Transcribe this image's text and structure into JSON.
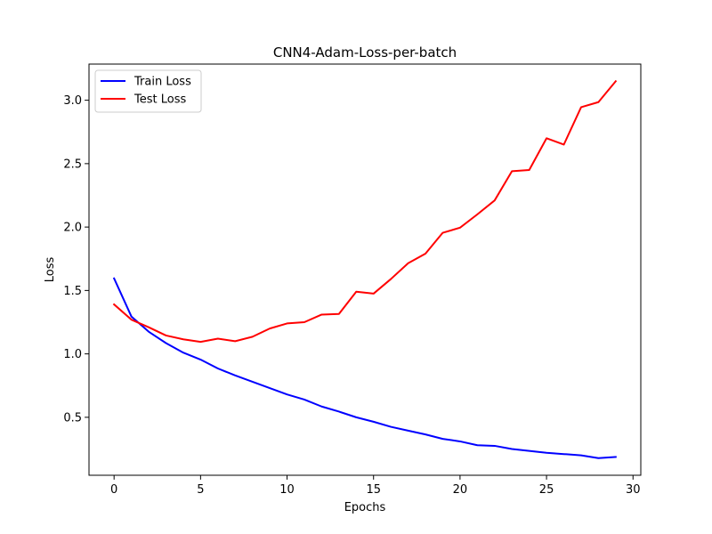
{
  "chart_data": {
    "type": "line",
    "title": "CNN4-Adam-Loss-per-batch",
    "xlabel": "Epochs",
    "ylabel": "Loss",
    "xlim": [
      -1.45,
      30.45
    ],
    "ylim": [
      0.043,
      3.285
    ],
    "xticks": [
      0,
      5,
      10,
      15,
      20,
      25,
      30
    ],
    "yticks": [
      0.5,
      1.0,
      1.5,
      2.0,
      2.5,
      3.0
    ],
    "xtick_labels": [
      "0",
      "5",
      "10",
      "15",
      "20",
      "25",
      "30"
    ],
    "ytick_labels": [
      "0.5",
      "1.0",
      "1.5",
      "2.0",
      "2.5",
      "3.0"
    ],
    "grid": false,
    "legend_position": "top-left",
    "x": [
      0,
      1,
      2,
      3,
      4,
      5,
      6,
      7,
      8,
      9,
      10,
      11,
      12,
      13,
      14,
      15,
      16,
      17,
      18,
      19,
      20,
      21,
      22,
      23,
      24,
      25,
      26,
      27,
      28,
      29
    ],
    "series": [
      {
        "name": "Train Loss",
        "color": "#0000ff",
        "values": [
          1.595,
          1.295,
          1.175,
          1.085,
          1.01,
          0.955,
          0.885,
          0.83,
          0.78,
          0.73,
          0.68,
          0.64,
          0.585,
          0.545,
          0.5,
          0.465,
          0.425,
          0.395,
          0.365,
          0.33,
          0.31,
          0.28,
          0.275,
          0.25,
          0.235,
          0.22,
          0.21,
          0.2,
          0.178,
          0.187
        ]
      },
      {
        "name": "Test Loss",
        "color": "#ff0000",
        "values": [
          1.39,
          1.27,
          1.21,
          1.145,
          1.115,
          1.095,
          1.12,
          1.1,
          1.135,
          1.2,
          1.24,
          1.25,
          1.31,
          1.315,
          1.49,
          1.475,
          1.59,
          1.715,
          1.79,
          1.955,
          1.995,
          2.1,
          2.21,
          2.44,
          2.45,
          2.7,
          2.65,
          2.945,
          2.985,
          3.15
        ]
      }
    ]
  }
}
